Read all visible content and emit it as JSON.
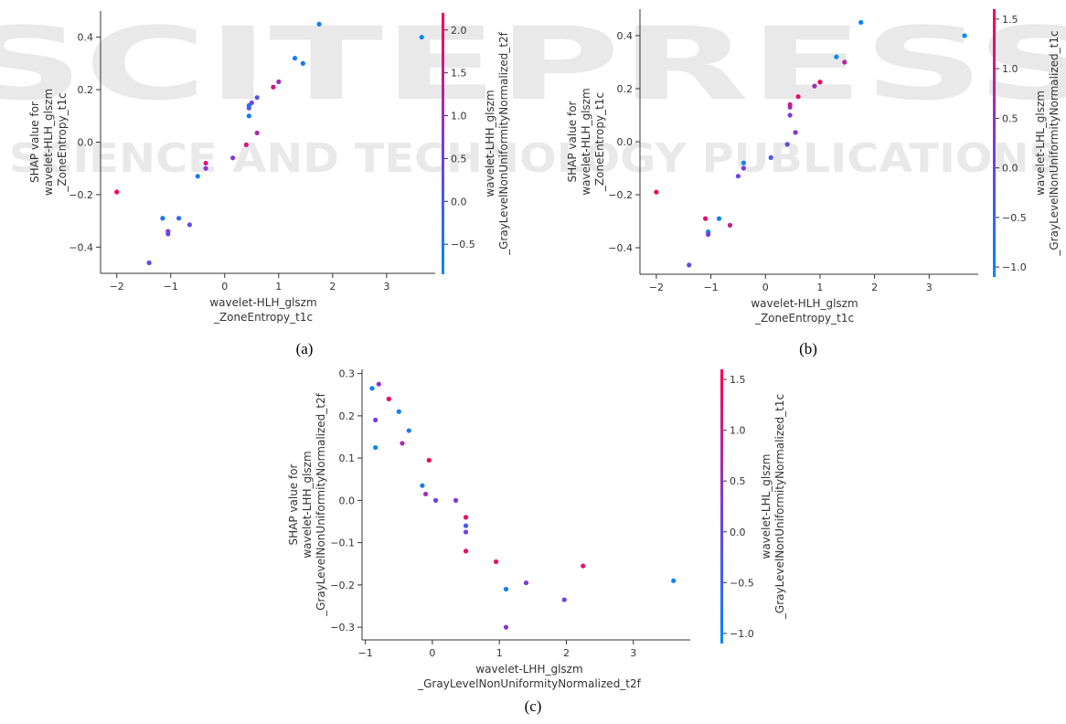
{
  "watermark": {
    "line1": "SCITEPRESS",
    "line2": "SCIENCE AND TECHNOLOGY PUBLICATIONS"
  },
  "chart_data": [
    {
      "panel": "(a)",
      "type": "scatter",
      "title": "",
      "xlabel": [
        "wavelet-HLH_glszm",
        "_ZoneEntropy_t1c"
      ],
      "ylabel": [
        "SHAP value for",
        "wavelet-HLH_glszm",
        "_ZoneEntropy_t1c"
      ],
      "xlim": [
        -2.3,
        3.9
      ],
      "ylim": [
        -0.5,
        0.5
      ],
      "xticks": [
        -2,
        -1,
        0,
        1,
        2,
        3
      ],
      "yticks": [
        -0.4,
        -0.2,
        0.0,
        0.2,
        0.4
      ],
      "colorbar": {
        "label": [
          "wavelet-LHH_glszm",
          "_GrayLevelNonUniformityNormalized_t2f"
        ],
        "range": [
          -0.85,
          2.2
        ],
        "ticks": [
          -0.5,
          0.0,
          0.5,
          1.0,
          1.5,
          2.0
        ]
      },
      "points": [
        {
          "x": -2.0,
          "y": -0.19,
          "c": 2.1
        },
        {
          "x": -1.4,
          "y": -0.46,
          "c": 0.3
        },
        {
          "x": -1.15,
          "y": -0.29,
          "c": -0.5
        },
        {
          "x": -1.05,
          "y": -0.34,
          "c": 0.8
        },
        {
          "x": -1.05,
          "y": -0.35,
          "c": 0.4
        },
        {
          "x": -0.85,
          "y": -0.29,
          "c": -0.3
        },
        {
          "x": -0.65,
          "y": -0.315,
          "c": 0.2
        },
        {
          "x": -0.5,
          "y": -0.13,
          "c": -0.5
        },
        {
          "x": -0.35,
          "y": -0.08,
          "c": 1.6
        },
        {
          "x": -0.35,
          "y": -0.1,
          "c": 0.9
        },
        {
          "x": 0.15,
          "y": -0.06,
          "c": 0.8
        },
        {
          "x": 0.4,
          "y": -0.01,
          "c": 1.6
        },
        {
          "x": 0.45,
          "y": 0.1,
          "c": -0.6
        },
        {
          "x": 0.45,
          "y": 0.13,
          "c": 0.1
        },
        {
          "x": 0.45,
          "y": 0.14,
          "c": -0.4
        },
        {
          "x": 0.5,
          "y": 0.15,
          "c": 0.6
        },
        {
          "x": 0.6,
          "y": 0.035,
          "c": 1.2
        },
        {
          "x": 0.6,
          "y": 0.17,
          "c": 0.2
        },
        {
          "x": 0.9,
          "y": 0.21,
          "c": 1.7
        },
        {
          "x": 1.0,
          "y": 0.23,
          "c": 1.0
        },
        {
          "x": 1.3,
          "y": 0.32,
          "c": -0.6
        },
        {
          "x": 1.45,
          "y": 0.3,
          "c": -0.5
        },
        {
          "x": 1.75,
          "y": 0.45,
          "c": -0.6
        },
        {
          "x": 3.65,
          "y": 0.4,
          "c": -0.7
        }
      ]
    },
    {
      "panel": "(b)",
      "type": "scatter",
      "title": "",
      "xlabel": [
        "wavelet-HLH_glszm",
        "_ZoneEntropy_t1c"
      ],
      "ylabel": [
        "SHAP value for",
        "wavelet-HLH_glszm",
        "_ZoneEntropy_t1c"
      ],
      "xlim": [
        -2.3,
        3.9
      ],
      "ylim": [
        -0.5,
        0.5
      ],
      "xticks": [
        -2,
        -1,
        0,
        1,
        2,
        3
      ],
      "yticks": [
        -0.4,
        -0.2,
        0.0,
        0.2,
        0.4
      ],
      "colorbar": {
        "label": [
          "wavelet-LHL_glszm",
          "_GrayLevelNonUniformityNormalized_t1c"
        ],
        "range": [
          -1.1,
          1.6
        ],
        "ticks": [
          -1.0,
          -0.5,
          0.0,
          0.5,
          1.0,
          1.5
        ]
      },
      "points": [
        {
          "x": -2.0,
          "y": -0.19,
          "c": 1.5
        },
        {
          "x": -1.4,
          "y": -0.465,
          "c": -0.1
        },
        {
          "x": -1.1,
          "y": -0.29,
          "c": 1.3
        },
        {
          "x": -1.05,
          "y": -0.34,
          "c": -1.0
        },
        {
          "x": -1.05,
          "y": -0.35,
          "c": 0.3
        },
        {
          "x": -0.85,
          "y": -0.29,
          "c": -0.9
        },
        {
          "x": -0.65,
          "y": -0.315,
          "c": 1.0
        },
        {
          "x": -0.5,
          "y": -0.13,
          "c": 0.1
        },
        {
          "x": -0.4,
          "y": -0.08,
          "c": -1.0
        },
        {
          "x": -0.4,
          "y": -0.1,
          "c": 0.2
        },
        {
          "x": 0.1,
          "y": -0.06,
          "c": -0.3
        },
        {
          "x": 0.4,
          "y": -0.01,
          "c": 0.0
        },
        {
          "x": 0.45,
          "y": 0.1,
          "c": 0.2
        },
        {
          "x": 0.45,
          "y": 0.13,
          "c": 0.6
        },
        {
          "x": 0.45,
          "y": 0.14,
          "c": 1.0
        },
        {
          "x": 0.55,
          "y": 0.035,
          "c": 0.4
        },
        {
          "x": 0.6,
          "y": 0.17,
          "c": 1.3
        },
        {
          "x": 0.9,
          "y": 0.21,
          "c": 0.5
        },
        {
          "x": 1.0,
          "y": 0.225,
          "c": 1.5
        },
        {
          "x": 1.3,
          "y": 0.32,
          "c": -1.0
        },
        {
          "x": 1.45,
          "y": 0.3,
          "c": 0.8
        },
        {
          "x": 1.75,
          "y": 0.45,
          "c": -1.0
        },
        {
          "x": 3.65,
          "y": 0.4,
          "c": -1.1
        }
      ]
    },
    {
      "panel": "(c)",
      "type": "scatter",
      "title": "",
      "xlabel": [
        "wavelet-LHH_glszm",
        "_GrayLevelNonUniformityNormalized_t2f"
      ],
      "ylabel": [
        "SHAP value for",
        "wavelet-LHH_glszm",
        "_GrayLevelNonUniformityNormalized_t2f"
      ],
      "xlim": [
        -1.05,
        3.85
      ],
      "ylim": [
        -0.33,
        0.31
      ],
      "xticks": [
        -1,
        0,
        1,
        2,
        3
      ],
      "yticks": [
        -0.3,
        -0.2,
        -0.1,
        0.0,
        0.1,
        0.2,
        0.3
      ],
      "colorbar": {
        "label": [
          "wavelet-LHL_glszm",
          "_GrayLevelNonUniformityNormalized_t1c"
        ],
        "range": [
          -1.1,
          1.6
        ],
        "ticks": [
          -1.0,
          -0.5,
          0.0,
          0.5,
          1.0,
          1.5
        ]
      },
      "points": [
        {
          "x": -0.9,
          "y": 0.265,
          "c": -1.0
        },
        {
          "x": -0.8,
          "y": 0.275,
          "c": 0.4
        },
        {
          "x": -0.65,
          "y": 0.24,
          "c": 1.5
        },
        {
          "x": -0.5,
          "y": 0.21,
          "c": -0.9
        },
        {
          "x": -0.85,
          "y": 0.19,
          "c": 0.3
        },
        {
          "x": -0.35,
          "y": 0.165,
          "c": -0.8
        },
        {
          "x": -0.45,
          "y": 0.135,
          "c": 0.7
        },
        {
          "x": -0.85,
          "y": 0.125,
          "c": -1.0
        },
        {
          "x": -0.05,
          "y": 0.095,
          "c": 1.5
        },
        {
          "x": -0.15,
          "y": 0.035,
          "c": -0.9
        },
        {
          "x": -0.1,
          "y": 0.015,
          "c": 0.6
        },
        {
          "x": 0.05,
          "y": 0.0,
          "c": 0.1
        },
        {
          "x": 0.35,
          "y": 0.0,
          "c": 0.3
        },
        {
          "x": 0.5,
          "y": -0.04,
          "c": 1.4
        },
        {
          "x": 0.5,
          "y": -0.06,
          "c": -0.4
        },
        {
          "x": 0.5,
          "y": -0.075,
          "c": 0.1
        },
        {
          "x": 0.5,
          "y": -0.12,
          "c": 1.4
        },
        {
          "x": 0.95,
          "y": -0.145,
          "c": 1.5
        },
        {
          "x": 1.1,
          "y": -0.21,
          "c": -0.9
        },
        {
          "x": 1.4,
          "y": -0.195,
          "c": 0.3
        },
        {
          "x": 1.1,
          "y": -0.3,
          "c": 0.4
        },
        {
          "x": 1.97,
          "y": -0.235,
          "c": 0.2
        },
        {
          "x": 2.25,
          "y": -0.155,
          "c": 1.3
        },
        {
          "x": 3.6,
          "y": -0.19,
          "c": -1.0
        }
      ]
    }
  ]
}
